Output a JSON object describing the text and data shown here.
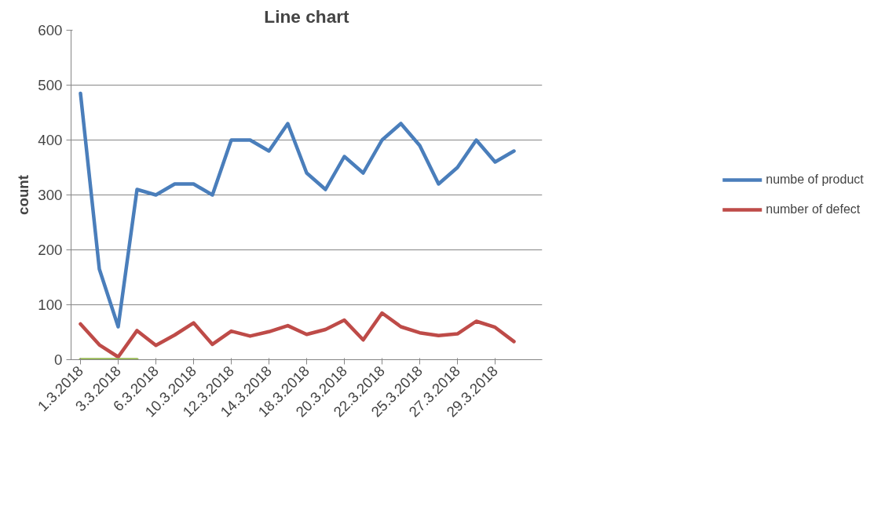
{
  "chart_data": {
    "type": "line",
    "title": "Line chart",
    "ylabel": "count",
    "categories": [
      "1.3.2018",
      null,
      "3.3.2018",
      null,
      "6.3.2018",
      null,
      "10.3.2018",
      null,
      "12.3.2018",
      null,
      "14.3.2018",
      null,
      "18.3.2018",
      null,
      "20.3.2018",
      null,
      "22.3.2018",
      null,
      "25.3.2018",
      null,
      "27.3.2018",
      null,
      "29.3.2018",
      null,
      null
    ],
    "series": [
      {
        "name": "numbe of product",
        "color": "#4a7ebb",
        "values": [
          485,
          165,
          60,
          310,
          300,
          320,
          320,
          300,
          400,
          400,
          380,
          430,
          340,
          310,
          370,
          340,
          400,
          430,
          390,
          320,
          350,
          400,
          360,
          380,
          null
        ]
      },
      {
        "name": "number of defect",
        "color": "#be4b48",
        "values": [
          65,
          27,
          5,
          53,
          26,
          45,
          67,
          28,
          52,
          43,
          51,
          62,
          46,
          55,
          72,
          36,
          85,
          60,
          49,
          44,
          47,
          70,
          59,
          33,
          null
        ]
      },
      {
        "color": "#98b954",
        "values": [
          0,
          0,
          0,
          0,
          null,
          null,
          null,
          null,
          null,
          null,
          null,
          null,
          null,
          null,
          null,
          null,
          null,
          null,
          null,
          null,
          null,
          null,
          null,
          null,
          null
        ]
      }
    ],
    "ylim": [
      0,
      600
    ],
    "yticks": [
      0,
      100,
      200,
      300,
      400,
      500,
      600
    ],
    "grid": "y",
    "legend": "right",
    "marker": "none",
    "line_style": "solid"
  }
}
